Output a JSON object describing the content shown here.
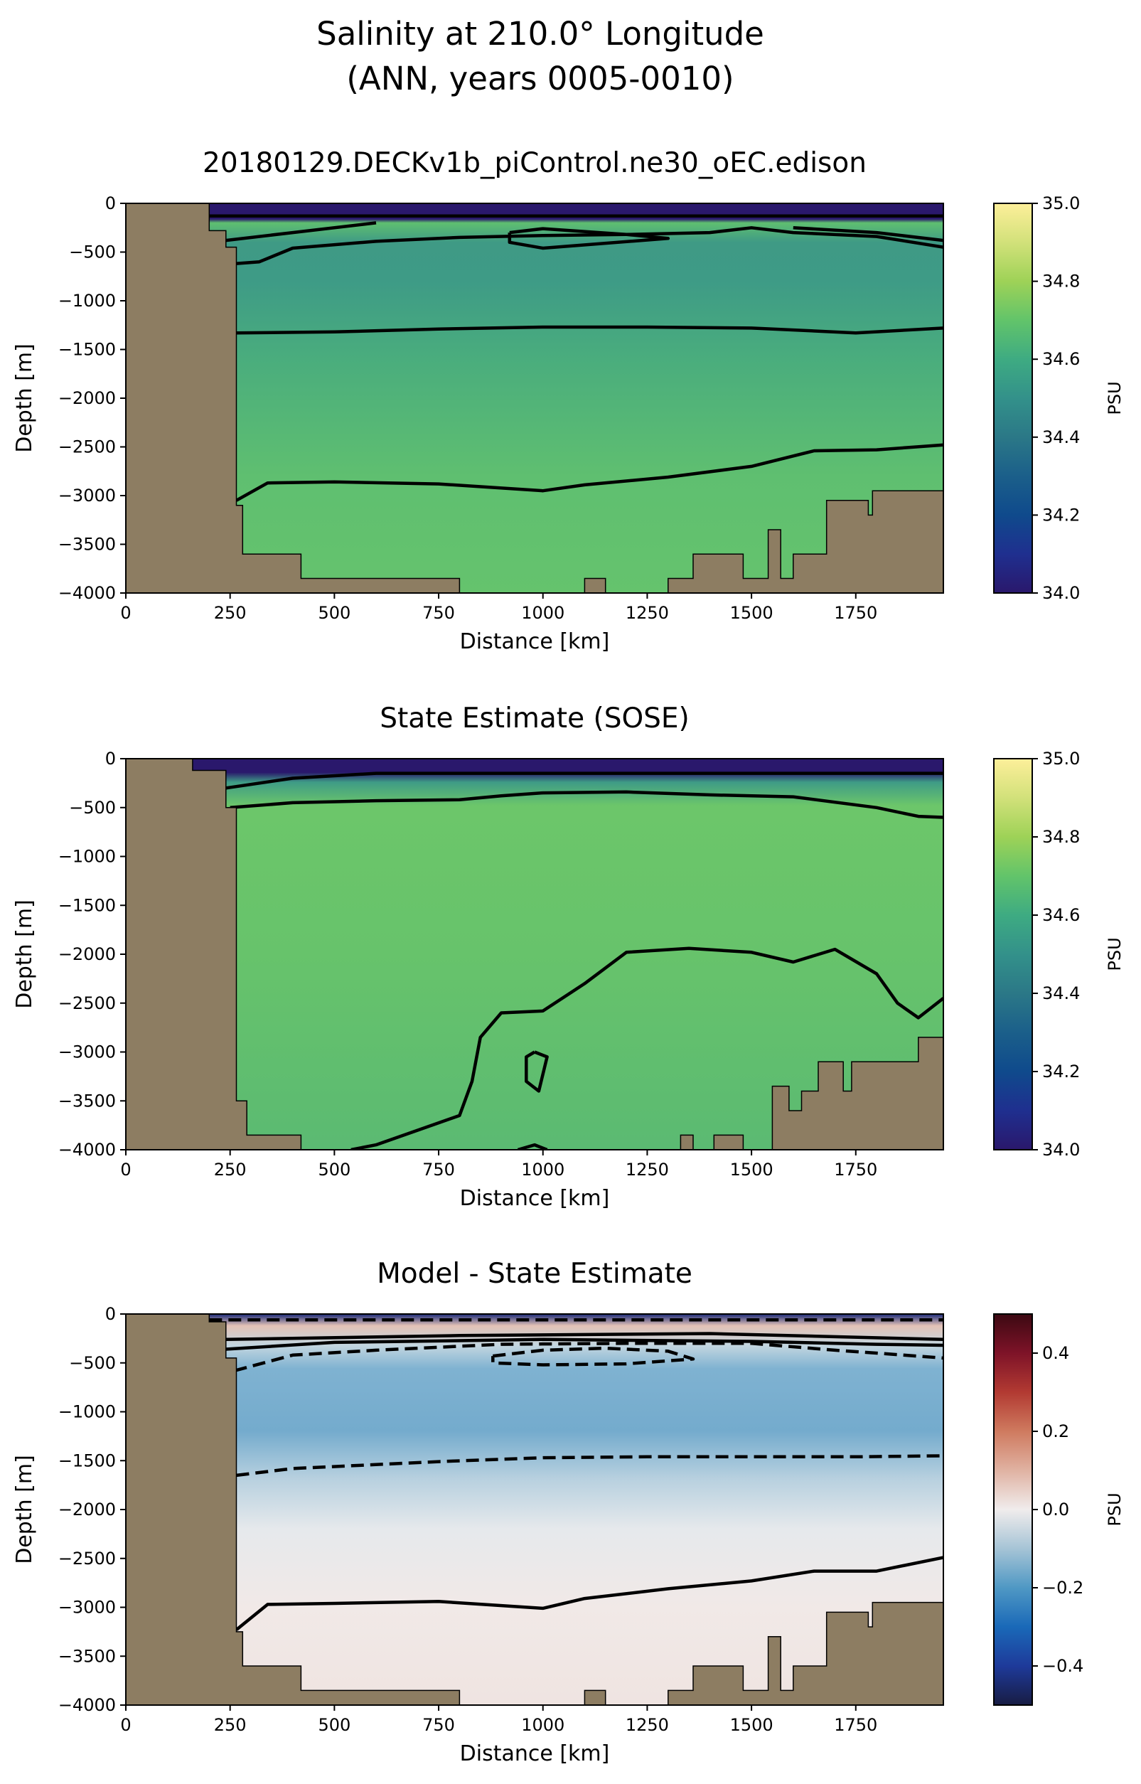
{
  "figure": {
    "title_line1": "Salinity at 210.0° Longitude",
    "title_line2": "(ANN, years 0005-0010)"
  },
  "chart_data": [
    {
      "type": "heatmap",
      "title": "20180129.DECKv1b_piControl.ne30_oEC.edison",
      "xlabel": "Distance [km]",
      "ylabel": "Depth [m]",
      "xlim": [
        0,
        1960
      ],
      "ylim": [
        -4000,
        0
      ],
      "xticks": [
        0,
        250,
        500,
        750,
        1000,
        1250,
        1500,
        1750
      ],
      "yticks": [
        0,
        -500,
        -1000,
        -1500,
        -2000,
        -2500,
        -3000,
        -3500,
        -4000
      ],
      "colorbar": {
        "label": "PSU",
        "range": [
          34.0,
          35.0
        ],
        "ticks": [
          "34.0",
          "34.2",
          "34.4",
          "34.6",
          "34.8",
          "35.0"
        ],
        "colormap": "haline"
      },
      "bathymetry_depth": [
        [
          0,
          0
        ],
        [
          200,
          0
        ],
        [
          200,
          -280
        ],
        [
          240,
          -280
        ],
        [
          240,
          -450
        ],
        [
          265,
          -450
        ],
        [
          265,
          -3100
        ],
        [
          280,
          -3100
        ],
        [
          280,
          -3600
        ],
        [
          420,
          -3600
        ],
        [
          420,
          -3850
        ],
        [
          800,
          -3850
        ],
        [
          800,
          -4000
        ],
        [
          1100,
          -4000
        ],
        [
          1100,
          -3850
        ],
        [
          1150,
          -3850
        ],
        [
          1150,
          -4000
        ],
        [
          1300,
          -4000
        ],
        [
          1300,
          -3850
        ],
        [
          1360,
          -3850
        ],
        [
          1360,
          -3600
        ],
        [
          1480,
          -3600
        ],
        [
          1480,
          -3850
        ],
        [
          1540,
          -3850
        ],
        [
          1540,
          -3350
        ],
        [
          1570,
          -3350
        ],
        [
          1570,
          -3850
        ],
        [
          1600,
          -3850
        ],
        [
          1600,
          -3600
        ],
        [
          1680,
          -3600
        ],
        [
          1680,
          -3050
        ],
        [
          1780,
          -3050
        ],
        [
          1780,
          -3200
        ],
        [
          1790,
          -3200
        ],
        [
          1790,
          -2950
        ],
        [
          1960,
          -2950
        ],
        [
          1960,
          -2850
        ]
      ],
      "contour_lines": [
        {
          "style": "solid",
          "points": [
            [
              200,
              -130
            ],
            [
              1960,
              -130
            ]
          ]
        },
        {
          "style": "solid",
          "points": [
            [
              240,
              -380
            ],
            [
              400,
              -300
            ],
            [
              600,
              -200
            ]
          ]
        },
        {
          "style": "solid",
          "points": [
            [
              1600,
              -250
            ],
            [
              1800,
              -300
            ],
            [
              1960,
              -380
            ]
          ]
        },
        {
          "style": "solid",
          "points": [
            [
              260,
              -620
            ],
            [
              320,
              -600
            ],
            [
              400,
              -460
            ],
            [
              600,
              -390
            ],
            [
              800,
              -350
            ],
            [
              1000,
              -330
            ],
            [
              1200,
              -320
            ],
            [
              1400,
              -300
            ],
            [
              1500,
              -250
            ],
            [
              1600,
              -300
            ],
            [
              1800,
              -340
            ],
            [
              1960,
              -450
            ]
          ]
        },
        {
          "style": "solid",
          "points": [
            [
              920,
              -300
            ],
            [
              1000,
              -260
            ],
            [
              1200,
              -320
            ],
            [
              1300,
              -360
            ],
            [
              1000,
              -460
            ],
            [
              920,
              -400
            ],
            [
              920,
              -300
            ]
          ]
        },
        {
          "style": "solid",
          "points": [
            [
              265,
              -1330
            ],
            [
              500,
              -1320
            ],
            [
              750,
              -1290
            ],
            [
              1000,
              -1270
            ],
            [
              1250,
              -1270
            ],
            [
              1500,
              -1280
            ],
            [
              1750,
              -1330
            ],
            [
              1960,
              -1280
            ]
          ]
        },
        {
          "style": "solid",
          "points": [
            [
              265,
              -3050
            ],
            [
              340,
              -2870
            ],
            [
              500,
              -2860
            ],
            [
              750,
              -2880
            ],
            [
              1000,
              -2950
            ],
            [
              1100,
              -2890
            ],
            [
              1300,
              -2810
            ],
            [
              1500,
              -2700
            ],
            [
              1650,
              -2540
            ],
            [
              1800,
              -2530
            ],
            [
              1960,
              -2480
            ]
          ]
        }
      ]
    },
    {
      "type": "heatmap",
      "title": "State Estimate (SOSE)",
      "xlabel": "Distance [km]",
      "ylabel": "Depth [m]",
      "xlim": [
        0,
        1960
      ],
      "ylim": [
        -4000,
        0
      ],
      "xticks": [
        0,
        250,
        500,
        750,
        1000,
        1250,
        1500,
        1750
      ],
      "yticks": [
        0,
        -500,
        -1000,
        -1500,
        -2000,
        -2500,
        -3000,
        -3500,
        -4000
      ],
      "colorbar": {
        "label": "PSU",
        "range": [
          34.0,
          35.0
        ],
        "ticks": [
          "34.0",
          "34.2",
          "34.4",
          "34.6",
          "34.8",
          "35.0"
        ],
        "colormap": "haline"
      },
      "bathymetry_depth": [
        [
          0,
          0
        ],
        [
          160,
          0
        ],
        [
          160,
          -120
        ],
        [
          240,
          -120
        ],
        [
          240,
          -500
        ],
        [
          265,
          -500
        ],
        [
          265,
          -3500
        ],
        [
          290,
          -3500
        ],
        [
          290,
          -3850
        ],
        [
          420,
          -3850
        ],
        [
          420,
          -4000
        ],
        [
          1330,
          -4000
        ],
        [
          1330,
          -3850
        ],
        [
          1360,
          -3850
        ],
        [
          1360,
          -4000
        ],
        [
          1410,
          -4000
        ],
        [
          1410,
          -3850
        ],
        [
          1480,
          -3850
        ],
        [
          1480,
          -4000
        ],
        [
          1550,
          -4000
        ],
        [
          1550,
          -3350
        ],
        [
          1590,
          -3350
        ],
        [
          1590,
          -3600
        ],
        [
          1620,
          -3600
        ],
        [
          1620,
          -3400
        ],
        [
          1660,
          -3400
        ],
        [
          1660,
          -3100
        ],
        [
          1720,
          -3100
        ],
        [
          1720,
          -3400
        ],
        [
          1740,
          -3400
        ],
        [
          1740,
          -3100
        ],
        [
          1900,
          -3100
        ],
        [
          1900,
          -2850
        ],
        [
          1960,
          -2850
        ]
      ],
      "contour_lines": [
        {
          "style": "solid",
          "points": [
            [
              240,
              -300
            ],
            [
              400,
              -200
            ],
            [
              600,
              -150
            ],
            [
              1960,
              -150
            ]
          ]
        },
        {
          "style": "solid",
          "points": [
            [
              250,
              -500
            ],
            [
              400,
              -450
            ],
            [
              600,
              -430
            ],
            [
              800,
              -420
            ],
            [
              900,
              -380
            ],
            [
              1000,
              -350
            ],
            [
              1200,
              -340
            ],
            [
              1400,
              -370
            ],
            [
              1600,
              -390
            ],
            [
              1800,
              -500
            ],
            [
              1900,
              -590
            ],
            [
              1960,
              -600
            ]
          ]
        },
        {
          "style": "solid",
          "points": [
            [
              540,
              -4000
            ],
            [
              600,
              -3950
            ],
            [
              700,
              -3800
            ],
            [
              800,
              -3650
            ],
            [
              830,
              -3300
            ],
            [
              850,
              -2850
            ],
            [
              900,
              -2600
            ],
            [
              1000,
              -2580
            ],
            [
              1100,
              -2300
            ],
            [
              1200,
              -1980
            ],
            [
              1350,
              -1940
            ],
            [
              1500,
              -1980
            ],
            [
              1600,
              -2080
            ],
            [
              1700,
              -1950
            ],
            [
              1800,
              -2200
            ],
            [
              1850,
              -2500
            ],
            [
              1900,
              -2650
            ],
            [
              1960,
              -2450
            ]
          ]
        },
        {
          "style": "solid",
          "points": [
            [
              980,
              -3000
            ],
            [
              1010,
              -3050
            ],
            [
              990,
              -3400
            ],
            [
              960,
              -3300
            ],
            [
              960,
              -3050
            ],
            [
              980,
              -3000
            ]
          ]
        },
        {
          "style": "solid",
          "points": [
            [
              940,
              -4000
            ],
            [
              980,
              -3950
            ],
            [
              1010,
              -4000
            ]
          ]
        }
      ]
    },
    {
      "type": "heatmap",
      "title": "Model - State Estimate",
      "xlabel": "Distance [km]",
      "ylabel": "Depth [m]",
      "xlim": [
        0,
        1960
      ],
      "ylim": [
        -4000,
        0
      ],
      "xticks": [
        0,
        250,
        500,
        750,
        1000,
        1250,
        1500,
        1750
      ],
      "yticks": [
        0,
        -500,
        -1000,
        -1500,
        -2000,
        -2500,
        -3000,
        -3500,
        -4000
      ],
      "colorbar": {
        "label": "PSU",
        "range": [
          -0.5,
          0.5
        ],
        "ticks": [
          "−0.4",
          "−0.2",
          "0.0",
          "0.2",
          "0.4"
        ],
        "colormap": "balance"
      },
      "bathymetry_depth": [
        [
          0,
          0
        ],
        [
          200,
          0
        ],
        [
          200,
          -80
        ],
        [
          240,
          -80
        ],
        [
          240,
          -450
        ],
        [
          265,
          -450
        ],
        [
          265,
          -3250
        ],
        [
          280,
          -3250
        ],
        [
          280,
          -3600
        ],
        [
          420,
          -3600
        ],
        [
          420,
          -3850
        ],
        [
          800,
          -3850
        ],
        [
          800,
          -4000
        ],
        [
          1100,
          -4000
        ],
        [
          1100,
          -3850
        ],
        [
          1150,
          -3850
        ],
        [
          1150,
          -4000
        ],
        [
          1300,
          -4000
        ],
        [
          1300,
          -3850
        ],
        [
          1360,
          -3850
        ],
        [
          1360,
          -3600
        ],
        [
          1480,
          -3600
        ],
        [
          1480,
          -3850
        ],
        [
          1540,
          -3850
        ],
        [
          1540,
          -3300
        ],
        [
          1570,
          -3300
        ],
        [
          1570,
          -3850
        ],
        [
          1600,
          -3850
        ],
        [
          1600,
          -3600
        ],
        [
          1680,
          -3600
        ],
        [
          1680,
          -3050
        ],
        [
          1780,
          -3050
        ],
        [
          1780,
          -3200
        ],
        [
          1790,
          -3200
        ],
        [
          1790,
          -2950
        ],
        [
          1960,
          -2950
        ],
        [
          1960,
          -2850
        ]
      ],
      "contour_lines": [
        {
          "style": "dashed",
          "points": [
            [
              200,
              -60
            ],
            [
              1960,
              -60
            ]
          ]
        },
        {
          "style": "solid",
          "points": [
            [
              240,
              -260
            ],
            [
              800,
              -220
            ],
            [
              1400,
              -200
            ],
            [
              1960,
              -260
            ]
          ]
        },
        {
          "style": "solid",
          "points": [
            [
              240,
              -360
            ],
            [
              500,
              -290
            ],
            [
              1000,
              -260
            ],
            [
              1500,
              -280
            ],
            [
              1800,
              -310
            ],
            [
              1960,
              -320
            ]
          ]
        },
        {
          "style": "dashed",
          "points": [
            [
              260,
              -580
            ],
            [
              400,
              -420
            ],
            [
              600,
              -370
            ],
            [
              900,
              -310
            ],
            [
              1200,
              -300
            ],
            [
              1500,
              -300
            ],
            [
              1700,
              -370
            ],
            [
              1800,
              -400
            ],
            [
              1960,
              -450
            ]
          ]
        },
        {
          "style": "dashed",
          "points": [
            [
              880,
              -430
            ],
            [
              1000,
              -370
            ],
            [
              1150,
              -350
            ],
            [
              1300,
              -380
            ],
            [
              1360,
              -460
            ],
            [
              1200,
              -510
            ],
            [
              1000,
              -520
            ],
            [
              880,
              -500
            ],
            [
              880,
              -430
            ]
          ]
        },
        {
          "style": "dashed",
          "points": [
            [
              265,
              -1650
            ],
            [
              400,
              -1580
            ],
            [
              750,
              -1510
            ],
            [
              1000,
              -1470
            ],
            [
              1250,
              -1460
            ],
            [
              1500,
              -1460
            ],
            [
              1750,
              -1460
            ],
            [
              1960,
              -1450
            ]
          ]
        },
        {
          "style": "solid",
          "points": [
            [
              265,
              -3230
            ],
            [
              340,
              -2970
            ],
            [
              500,
              -2960
            ],
            [
              750,
              -2940
            ],
            [
              1000,
              -3010
            ],
            [
              1100,
              -2910
            ],
            [
              1300,
              -2810
            ],
            [
              1500,
              -2730
            ],
            [
              1650,
              -2630
            ],
            [
              1800,
              -2630
            ],
            [
              1960,
              -2490
            ]
          ]
        }
      ]
    }
  ]
}
